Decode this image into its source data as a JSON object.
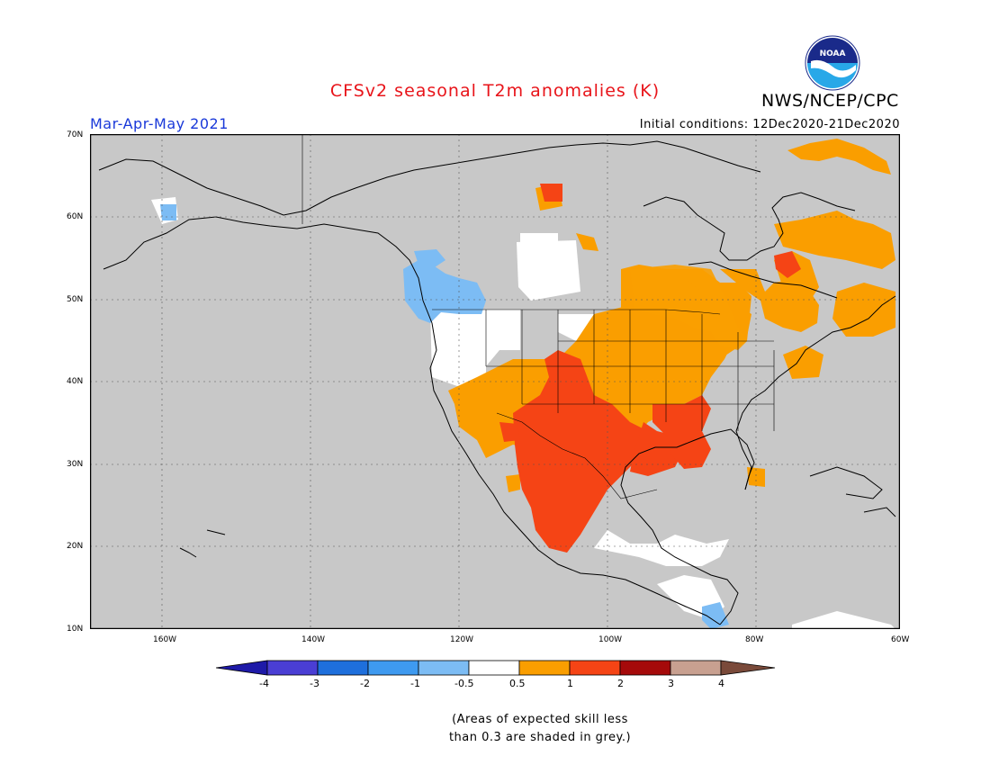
{
  "title": "CFSv2 seasonal T2m anomalies (K)",
  "org": "NWS/NCEP/CPC",
  "logo_text": "NOAA",
  "season": "Mar-Apr-May 2021",
  "initial_conditions": "Initial conditions: 12Dec2020-21Dec2020",
  "lat_labels": [
    "70N",
    "60N",
    "50N",
    "40N",
    "30N",
    "20N",
    "10N"
  ],
  "lon_labels": [
    "160W",
    "140W",
    "120W",
    "100W",
    "80W",
    "60W"
  ],
  "colorbar": {
    "labels": [
      "-4",
      "-3",
      "-2",
      "-1",
      "-0.5",
      "0.5",
      "1",
      "2",
      "3",
      "4"
    ],
    "colors": [
      "#1e1aa8",
      "#4a3ed4",
      "#1e6fdc",
      "#3e9af0",
      "#7cbcf4",
      "#ffffff",
      "#fa9e00",
      "#f54415",
      "#a50a0a",
      "#c8a090",
      "#7a4a3a"
    ]
  },
  "skill_note_line1": "(Areas of expected skill less",
  "skill_note_line2": "than 0.3 are shaded in grey.)",
  "colors": {
    "grey": "#c8c8c8",
    "white": "#ffffff",
    "orange": "#fa9e00",
    "red": "#f54415",
    "light_blue": "#7cbcf4"
  }
}
